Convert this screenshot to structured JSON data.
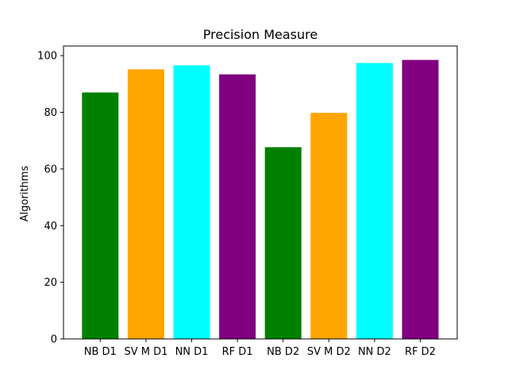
{
  "chart_data": {
    "type": "bar",
    "title": "Precision Measure",
    "xlabel": "",
    "ylabel": "Algorithms",
    "categories": [
      "NB D1",
      "SV M D1",
      "NN D1",
      "RF D1",
      "NB D2",
      "SV M D2",
      "NN D2",
      "RF D2"
    ],
    "values": [
      87,
      95.2,
      96.6,
      93.4,
      67.7,
      79.8,
      97.4,
      98.5
    ],
    "colors": [
      "#008000",
      "#FFA500",
      "#00FFFF",
      "#800080",
      "#008000",
      "#FFA500",
      "#00FFFF",
      "#800080"
    ],
    "ylim": [
      0,
      103.4
    ],
    "yticks": [
      0,
      20,
      40,
      60,
      80,
      100
    ],
    "grid": false,
    "legend": "none"
  }
}
